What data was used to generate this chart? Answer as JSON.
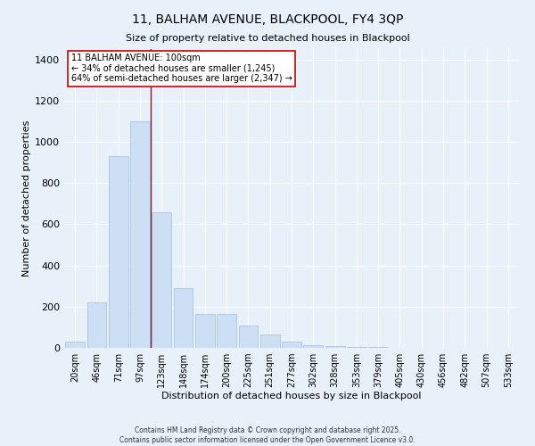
{
  "title": "11, BALHAM AVENUE, BLACKPOOL, FY4 3QP",
  "subtitle": "Size of property relative to detached houses in Blackpool",
  "xlabel": "Distribution of detached houses by size in Blackpool",
  "ylabel": "Number of detached properties",
  "footer_line1": "Contains HM Land Registry data © Crown copyright and database right 2025.",
  "footer_line2": "Contains public sector information licensed under the Open Government Licence v3.0.",
  "categories": [
    "20sqm",
    "46sqm",
    "71sqm",
    "97sqm",
    "123sqm",
    "148sqm",
    "174sqm",
    "200sqm",
    "225sqm",
    "251sqm",
    "277sqm",
    "302sqm",
    "328sqm",
    "353sqm",
    "379sqm",
    "405sqm",
    "430sqm",
    "456sqm",
    "482sqm",
    "507sqm",
    "533sqm"
  ],
  "values": [
    30,
    220,
    930,
    1100,
    660,
    290,
    165,
    165,
    110,
    65,
    30,
    15,
    10,
    5,
    3,
    2,
    2,
    1,
    0,
    1,
    0
  ],
  "bar_color": "#ccdff5",
  "bar_edge_color": "#a0c0e0",
  "annotation_line_color": "#cc0000",
  "annotation_box_text_line1": "11 BALHAM AVENUE: 100sqm",
  "annotation_box_text_line2": "← 34% of detached houses are smaller (1,245)",
  "annotation_box_text_line3": "64% of semi-detached houses are larger (2,347) →",
  "annotation_box_color": "#ffffff",
  "annotation_box_edge_color": "#cc0000",
  "bg_color": "#e8f0fa",
  "grid_color": "#ffffff",
  "ylim": [
    0,
    1450
  ],
  "yticks": [
    0,
    200,
    400,
    600,
    800,
    1000,
    1200,
    1400
  ],
  "red_line_x": 3.5
}
